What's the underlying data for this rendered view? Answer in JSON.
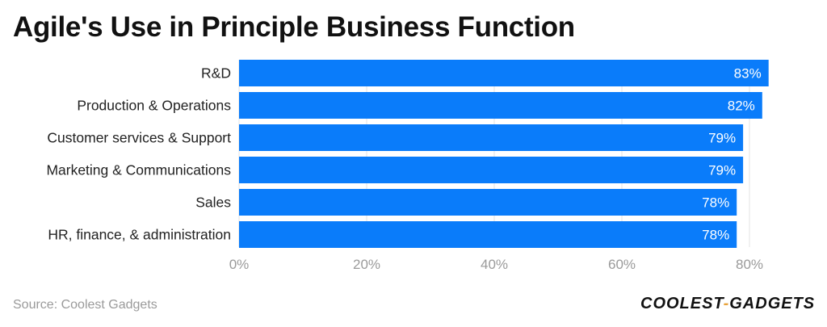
{
  "title": "Agile's Use in Principle Business Function",
  "source": "Source: Coolest Gadgets",
  "logo": {
    "part1": "COOLEST",
    "dash": "-",
    "part2": "GADGETS"
  },
  "colors": {
    "bar": "#0a7cfa",
    "bar_label": "#ffffff",
    "category_label": "#222222",
    "tick_label": "#9a9a9a",
    "grid": "#e3e3e3"
  },
  "chart_data": {
    "type": "bar",
    "orientation": "horizontal",
    "categories": [
      "R&D",
      "Production & Operations",
      "Customer services & Support",
      "Marketing & Communications",
      "Sales",
      "HR, finance, & administration"
    ],
    "values": [
      83,
      82,
      79,
      79,
      78,
      78
    ],
    "value_labels": [
      "83%",
      "82%",
      "79%",
      "79%",
      "78%",
      "78%"
    ],
    "xlim": [
      0,
      83
    ],
    "x_ticks": [
      0,
      20,
      40,
      60,
      80
    ],
    "x_tick_labels": [
      "0%",
      "20%",
      "40%",
      "60%",
      "80%"
    ],
    "grid": true
  }
}
